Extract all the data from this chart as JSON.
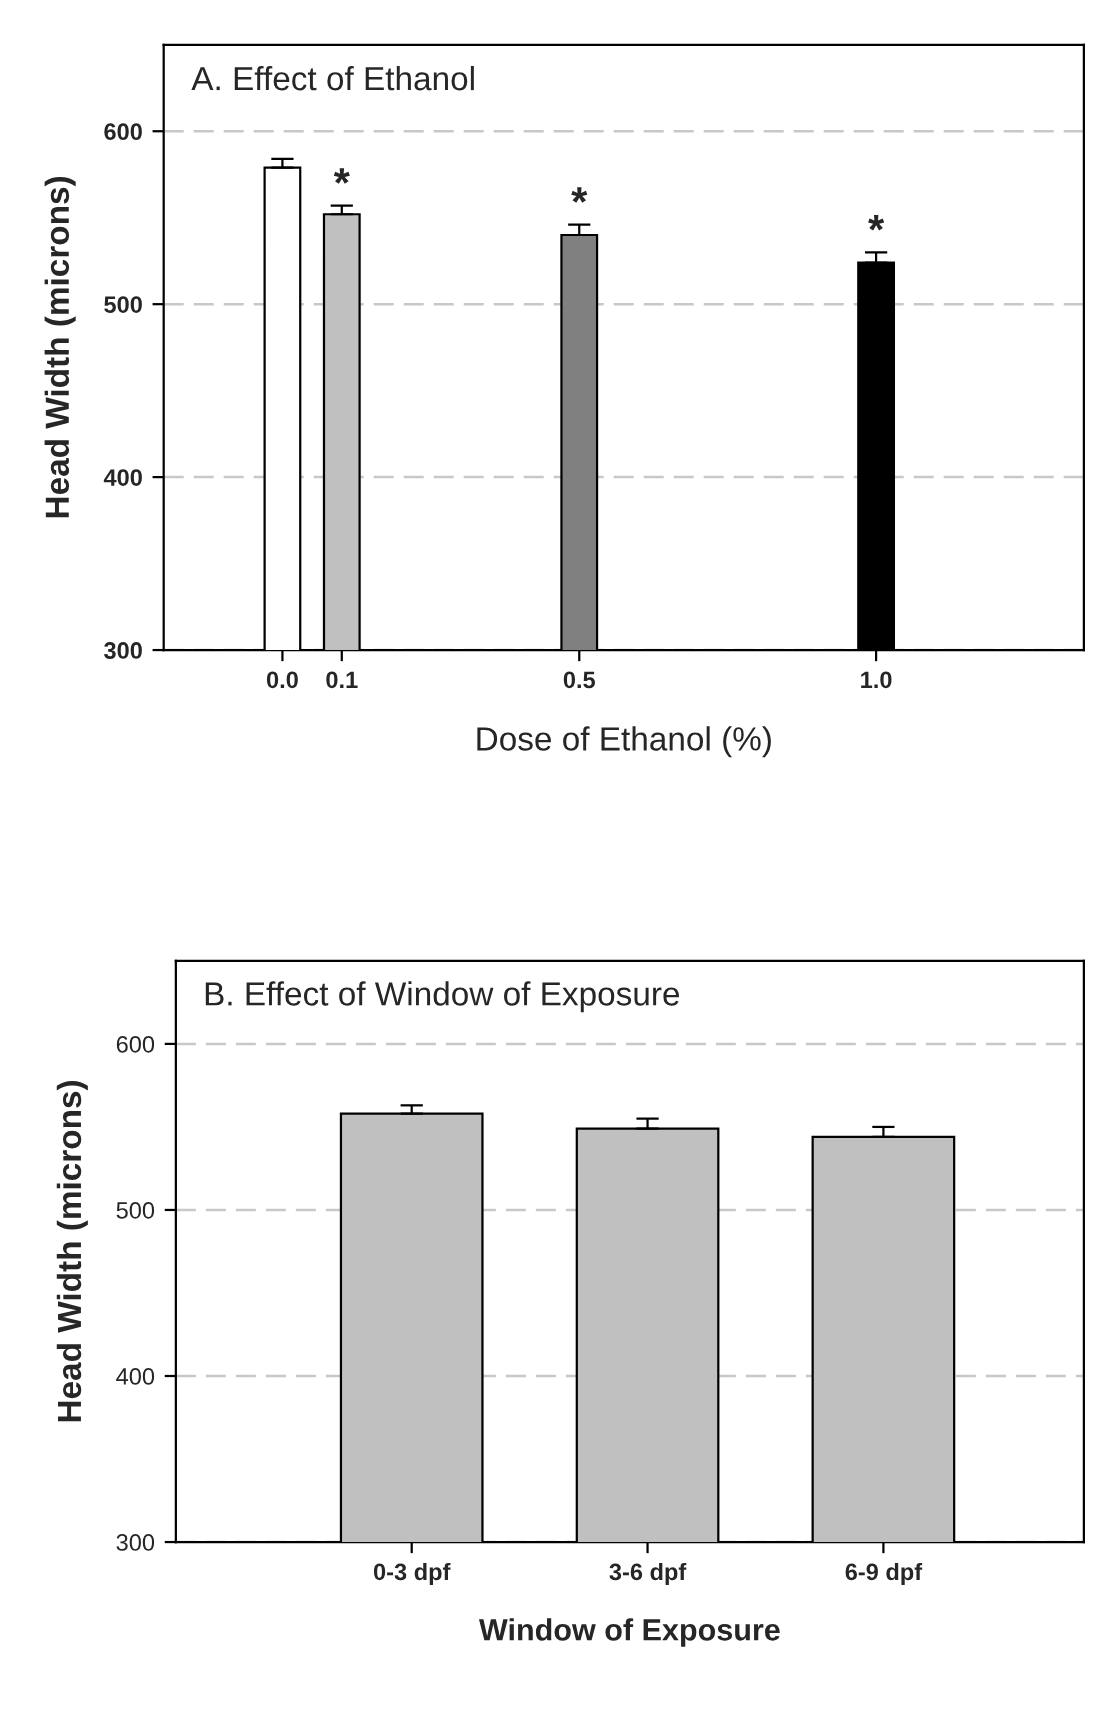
{
  "chart_data": [
    {
      "type": "bar",
      "title": "A. Effect of Ethanol",
      "xlabel": "Dose of Ethanol (%)",
      "ylabel": "Head Width (microns)",
      "x": [
        0.0,
        0.1,
        0.5,
        1.0
      ],
      "values": [
        579,
        552,
        540,
        524
      ],
      "errors": [
        5,
        5,
        6,
        6
      ],
      "colors": [
        "#ffffff",
        "#c0c0c0",
        "#808080",
        "#000000"
      ],
      "xlim": [
        -0.2,
        1.35
      ],
      "xticks": [
        {
          "value": 0.0,
          "label": "0.0"
        },
        0.1,
        0.5,
        {
          "value": 1.0,
          "label": "1.0"
        }
      ],
      "ylim": [
        300,
        650
      ],
      "yticks": [
        300,
        400,
        500,
        600
      ],
      "grid": "y",
      "annotations": [
        {
          "text": "*",
          "x": 0.1,
          "y": 557
        },
        {
          "text": "*",
          "x": 0.5,
          "y": 546
        },
        {
          "text": "*",
          "x": 1.0,
          "y": 530
        }
      ]
    },
    {
      "type": "bar",
      "title": "B. Effect of Window of Exposure",
      "xlabel": "Window of Exposure",
      "ylabel": "Head Width (microns)",
      "categories": [
        "0-3 dpf",
        "3-6 dpf",
        "6-9 dpf"
      ],
      "values": [
        558,
        549,
        544
      ],
      "errors": [
        5,
        6,
        6
      ],
      "color": "#c0c0c0",
      "ylim": [
        300,
        650
      ],
      "yticks": [
        300,
        400,
        500,
        600
      ],
      "grid": "y"
    }
  ]
}
